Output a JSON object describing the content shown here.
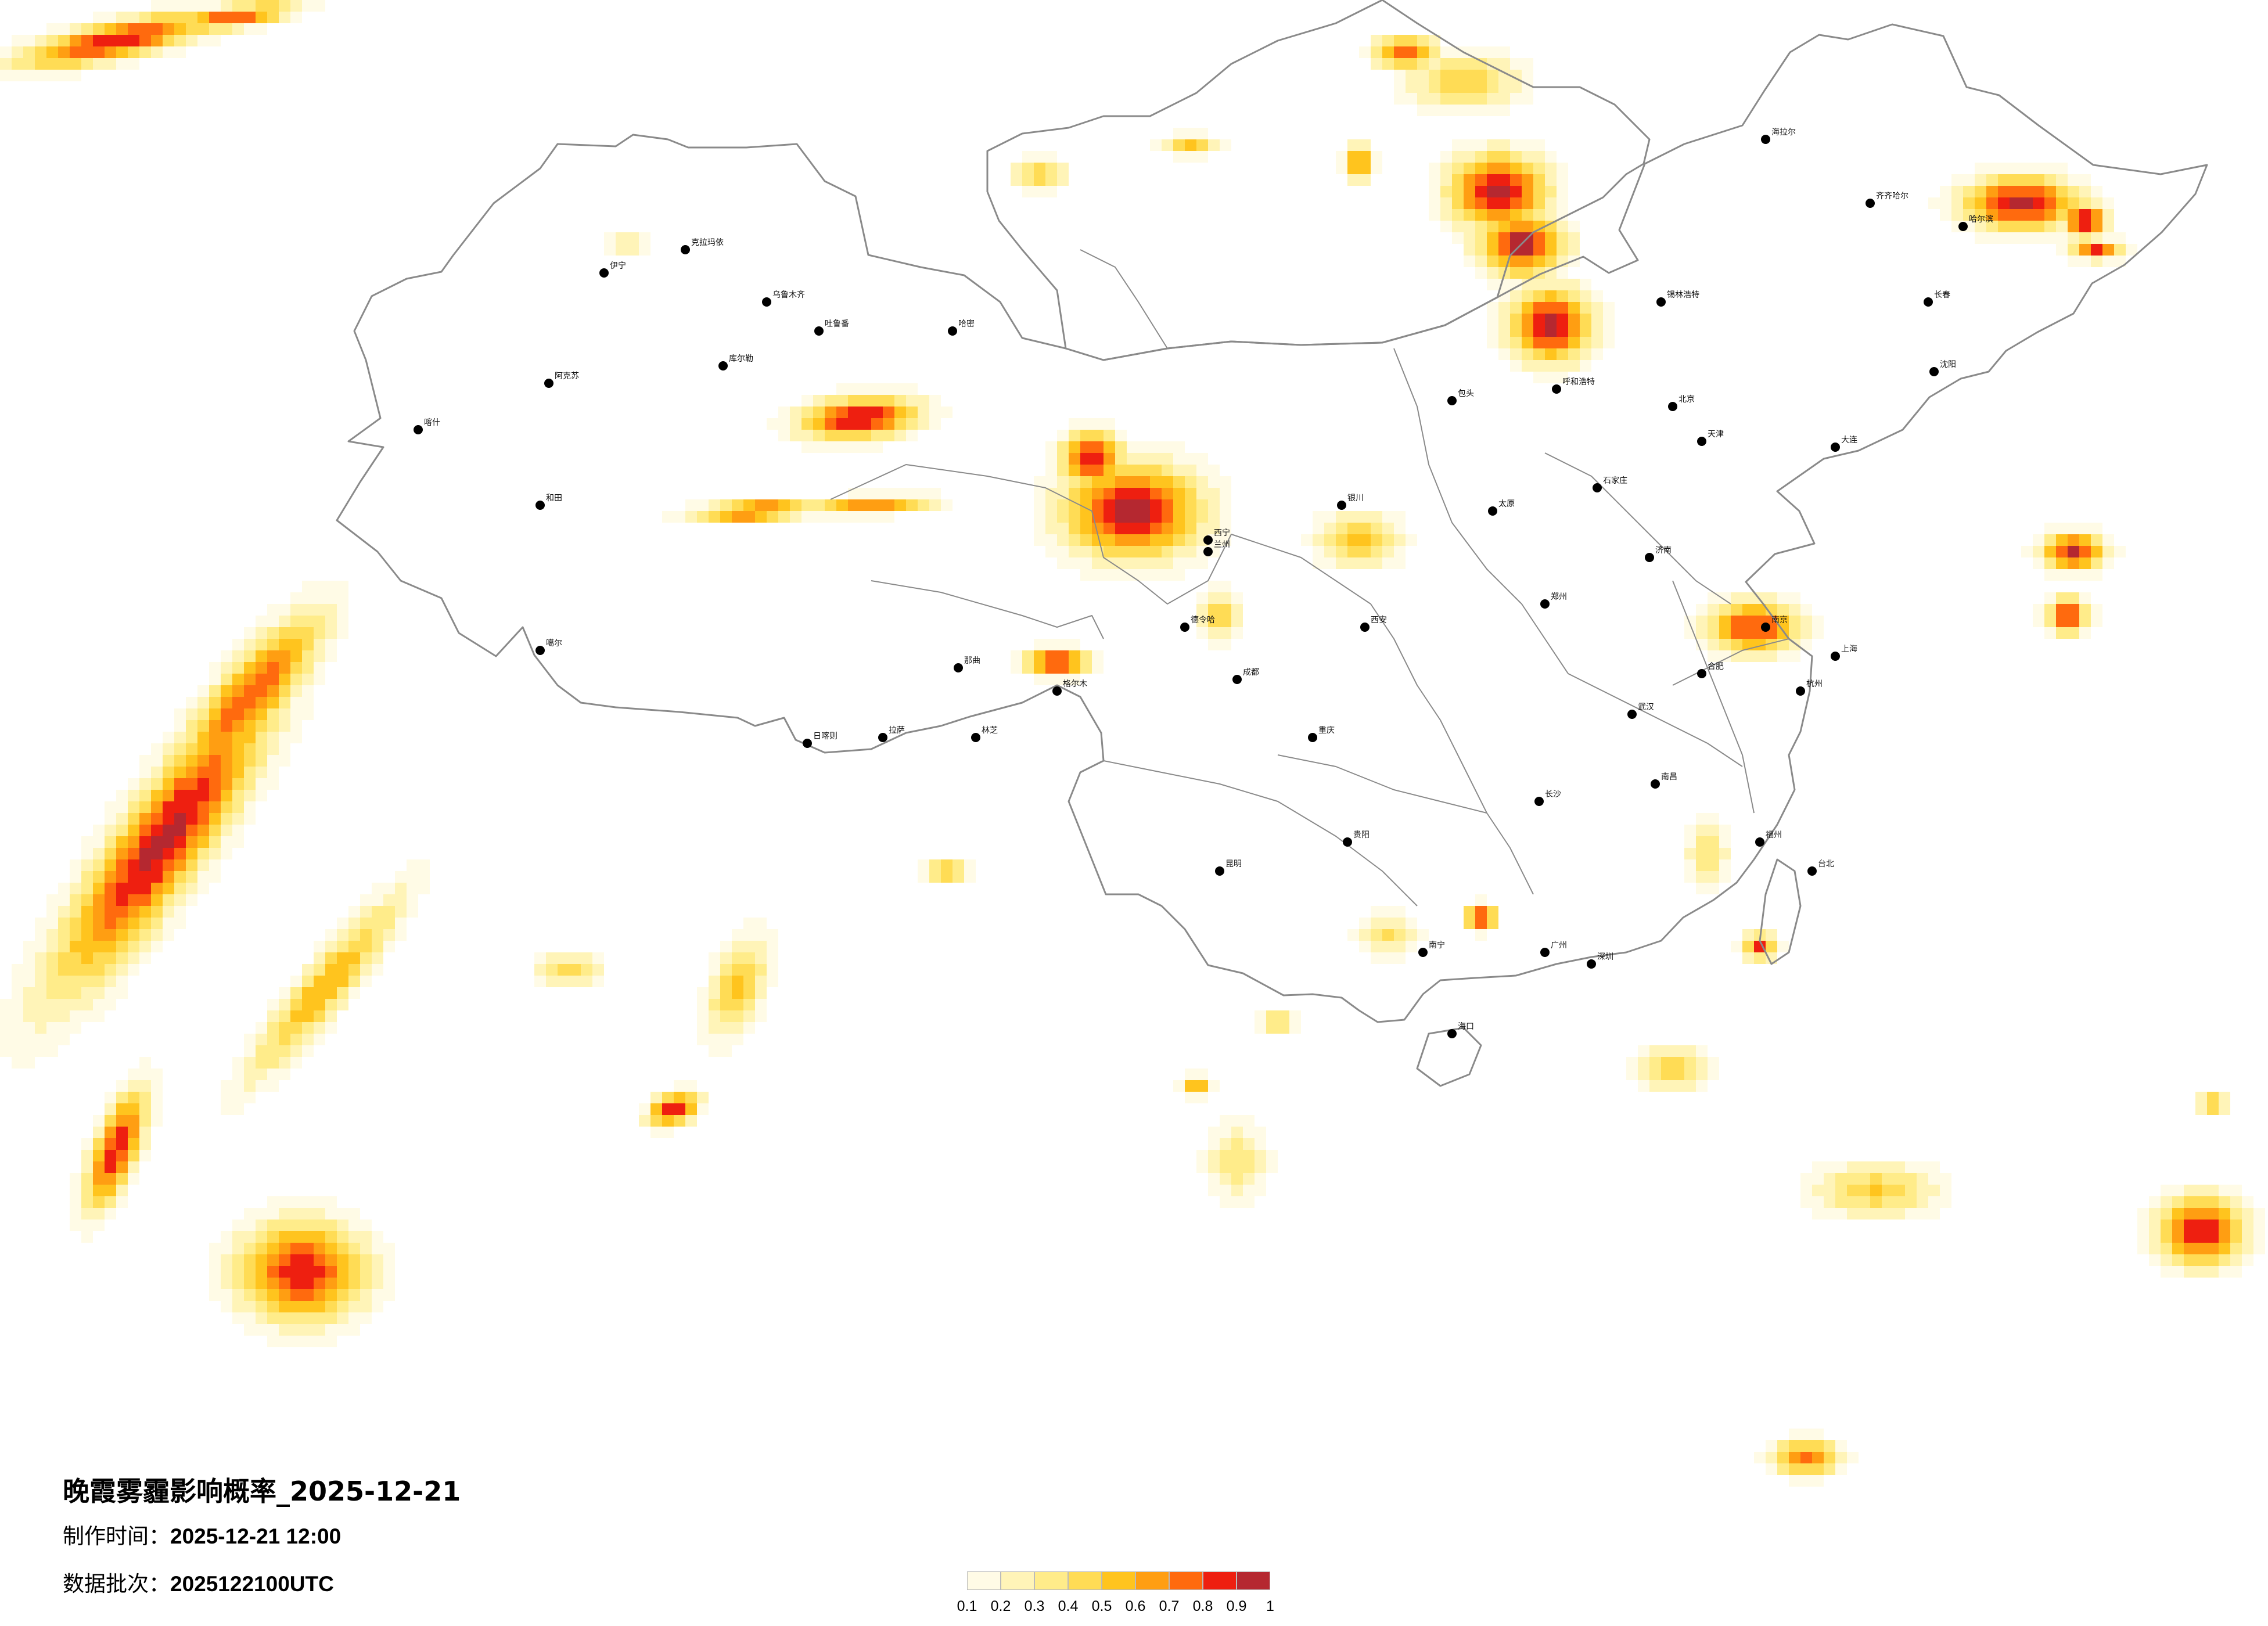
{
  "title": "晚霞雾霾影响概率_2025-12-21",
  "production_time": {
    "label": "制作时间：",
    "value": "2025-12-21 12:00"
  },
  "data_batch": {
    "label": "数据批次：",
    "value": "2025122100UTC"
  },
  "legend": {
    "ticks": [
      "0.1",
      "0.2",
      "0.3",
      "0.4",
      "0.5",
      "0.6",
      "0.7",
      "0.8",
      "0.9",
      "1"
    ],
    "colors": [
      "#fffbe6",
      "#fff4b8",
      "#ffec8a",
      "#ffdc55",
      "#ffc41e",
      "#ff9e12",
      "#ff6a0e",
      "#ee1f10",
      "#b52830"
    ]
  },
  "cities": [
    "伊宁",
    "克拉玛依",
    "乌鲁木齐",
    "吐鲁番",
    "哈密",
    "库尔勒",
    "阿克苏",
    "喀什",
    "和田",
    "噶尔",
    "日喀则",
    "拉萨",
    "林芝",
    "那曲",
    "格尔木",
    "德令哈",
    "西宁",
    "兰州",
    "银川",
    "呼和浩特",
    "包头",
    "锡林浩特",
    "海拉尔",
    "齐齐哈尔",
    "哈尔滨",
    "长春",
    "沈阳",
    "大连",
    "北京",
    "天津",
    "石家庄",
    "太原",
    "济南",
    "郑州",
    "西安",
    "武汉",
    "南京",
    "上海",
    "杭州",
    "合肥",
    "南昌",
    "长沙",
    "福州",
    "台北",
    "广州",
    "深圳",
    "南宁",
    "海口",
    "贵阳",
    "昆明",
    "成都",
    "重庆"
  ]
}
